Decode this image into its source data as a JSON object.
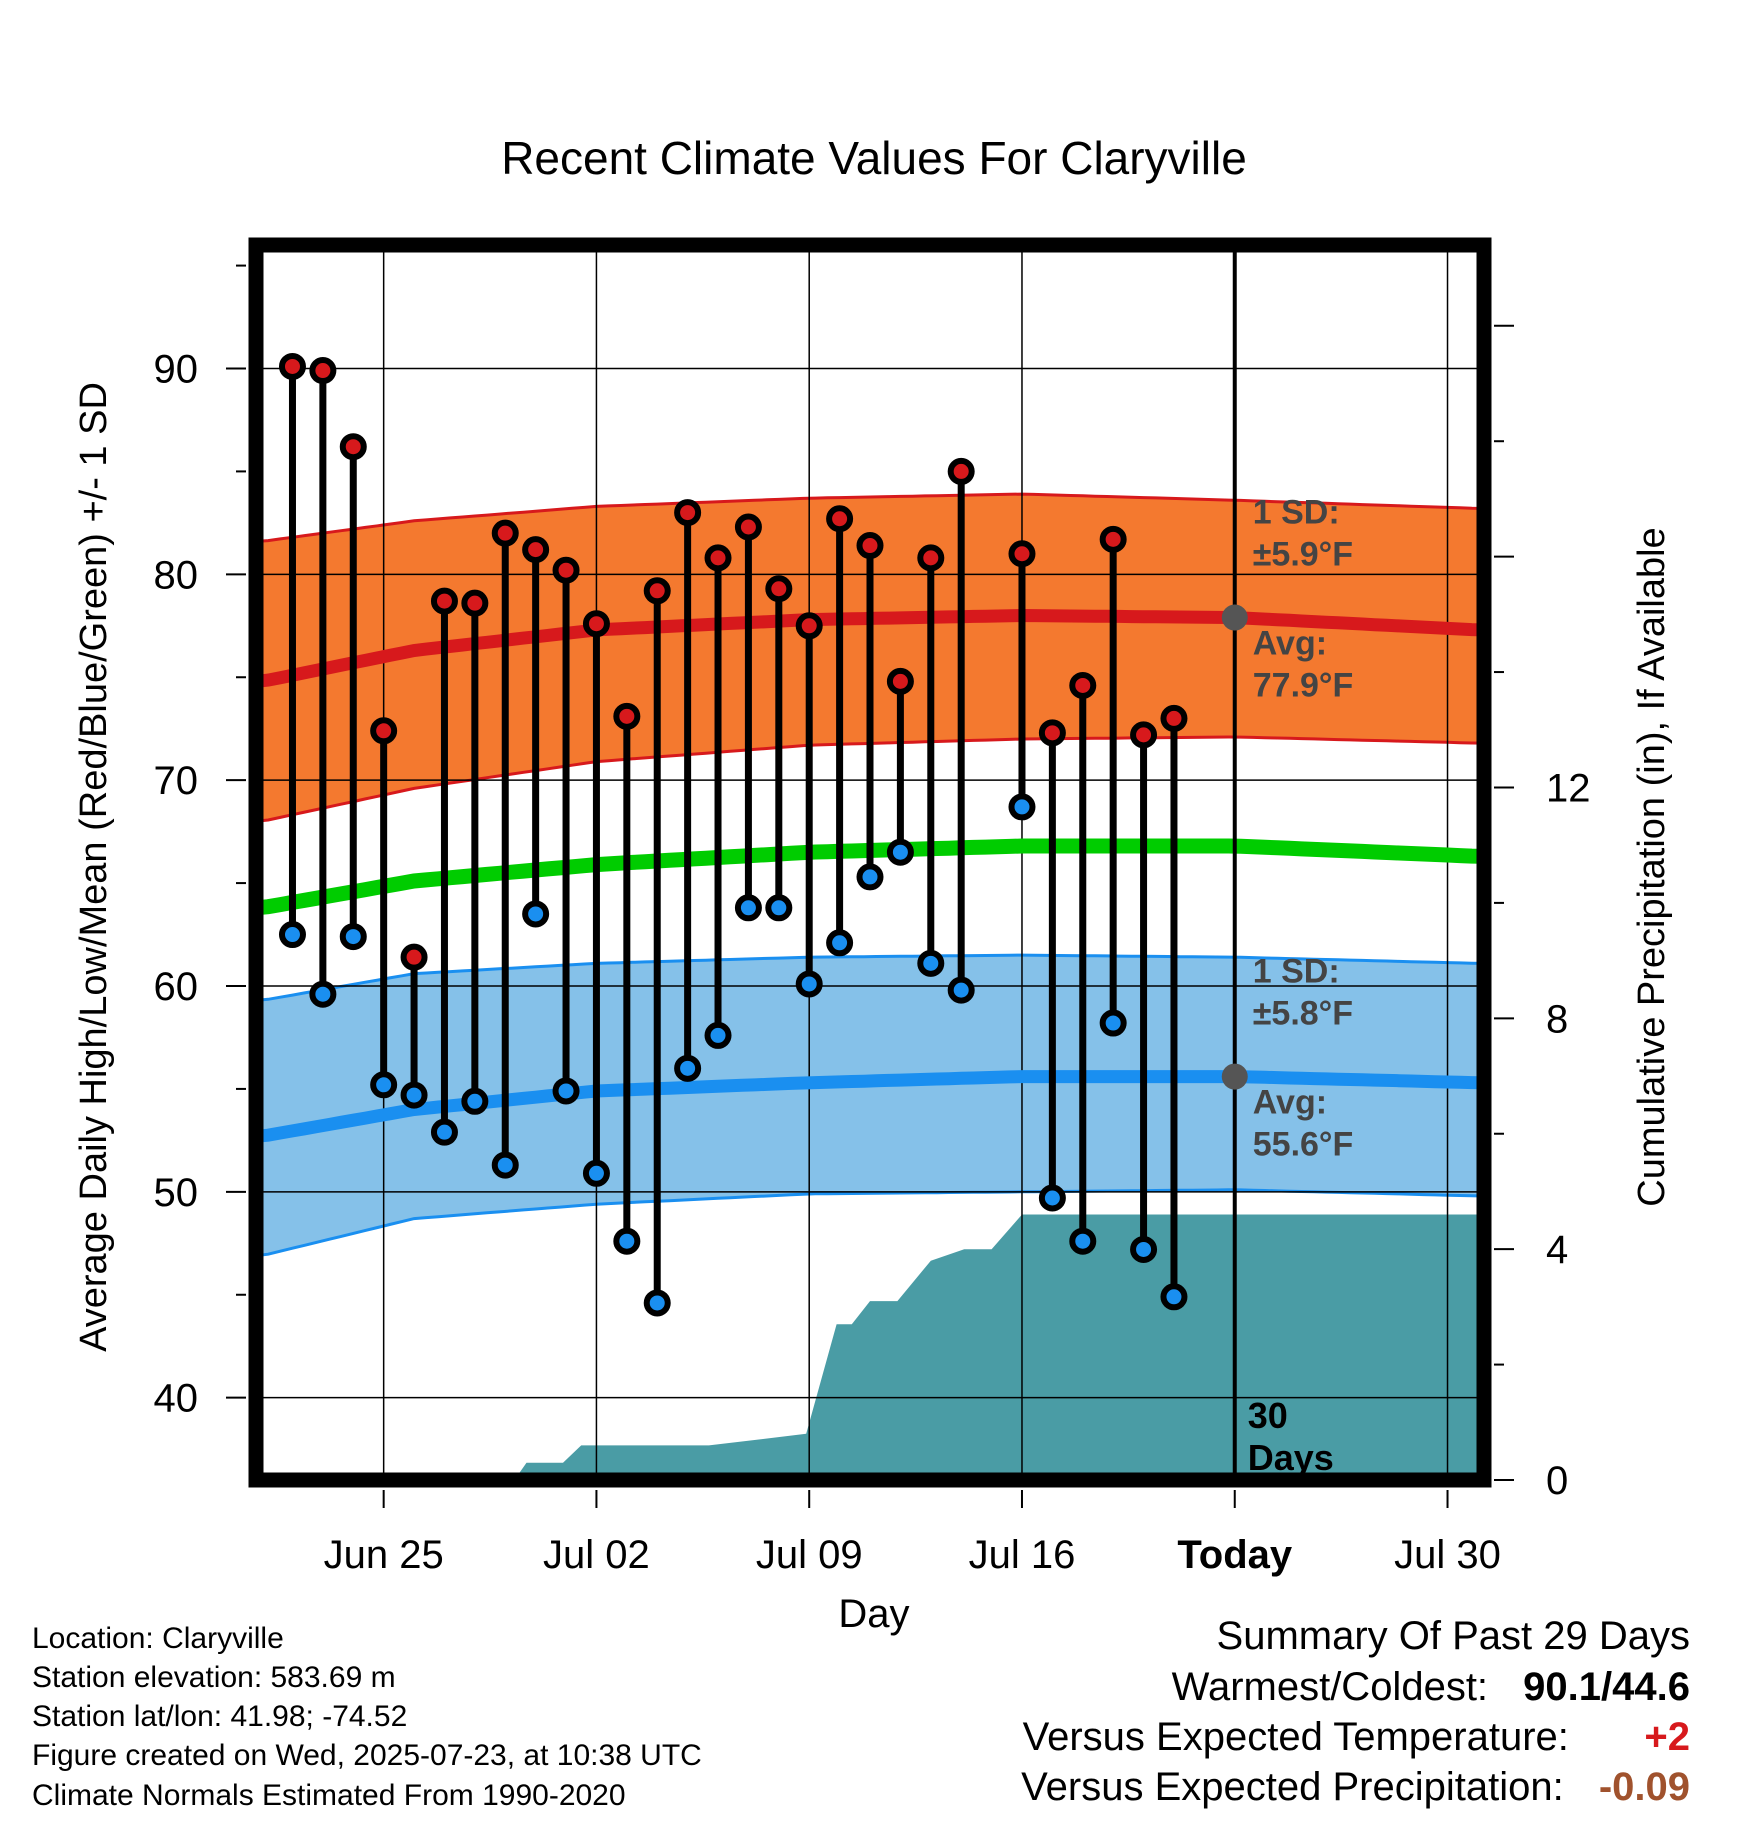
{
  "chart_data": {
    "type": "line",
    "title": "Recent Climate Values For Claryville",
    "xlabel": "Day",
    "ylabel_left": "Average Daily High/Low/Mean (Red/Blue/Green) +/- 1 SD",
    "ylabel_right": "Cumulative Precipitation (in), If Available",
    "ylim_left": [
      36,
      96
    ],
    "ylim_right": [
      0,
      21.4
    ],
    "xlim": [
      -3.2,
      37.2
    ],
    "x_ticks": [
      {
        "day": 1,
        "label": "Jun 25"
      },
      {
        "day": 8,
        "label": "Jul 02"
      },
      {
        "day": 15,
        "label": "Jul 09"
      },
      {
        "day": 22,
        "label": "Jul 16"
      },
      {
        "day": 29,
        "label": "Today"
      },
      {
        "day": 36,
        "label": "Jul 30"
      }
    ],
    "y_ticks_left": [
      40,
      50,
      60,
      70,
      80,
      90
    ],
    "y_ticks_right": [
      0,
      4,
      8,
      12
    ],
    "grid": true,
    "normals": {
      "day": [
        -3,
        2,
        8,
        15,
        22,
        29,
        37
      ],
      "high_avg": [
        74.8,
        76.3,
        77.3,
        77.8,
        78.0,
        77.9,
        77.3
      ],
      "high_sd_upper": [
        81.6,
        82.6,
        83.3,
        83.7,
        83.9,
        83.6,
        83.2
      ],
      "high_sd_lower": [
        68.0,
        69.6,
        70.9,
        71.7,
        72.0,
        72.1,
        71.8
      ],
      "mean_avg": [
        63.8,
        65.1,
        65.9,
        66.5,
        66.8,
        66.8,
        66.3
      ],
      "low_avg": [
        52.7,
        54.0,
        54.9,
        55.3,
        55.6,
        55.6,
        55.3
      ],
      "low_sd_upper": [
        59.3,
        60.6,
        61.1,
        61.4,
        61.5,
        61.4,
        61.1
      ],
      "low_sd_lower": [
        46.9,
        48.7,
        49.4,
        49.9,
        50.0,
        50.1,
        49.8
      ]
    },
    "daily": {
      "day": [
        -2,
        -1,
        0,
        1,
        2,
        3,
        4,
        5,
        6,
        7,
        8,
        9,
        10,
        11,
        12,
        13,
        14,
        15,
        16,
        17,
        18,
        19,
        20,
        22,
        23,
        24,
        25,
        26,
        27,
        28
      ],
      "high": [
        90.1,
        89.9,
        86.2,
        72.4,
        61.4,
        78.7,
        78.6,
        82.0,
        81.2,
        80.2,
        77.6,
        73.1,
        79.2,
        83.0,
        80.8,
        82.3,
        79.3,
        77.5,
        82.7,
        81.4,
        74.8,
        80.8,
        85.0,
        81.0,
        72.3,
        74.6,
        81.7,
        72.2,
        73.0,
        null
      ],
      "low": [
        62.5,
        59.6,
        62.4,
        55.2,
        54.7,
        52.9,
        54.4,
        51.3,
        63.5,
        54.9,
        50.9,
        47.6,
        44.6,
        56.0,
        57.6,
        63.8,
        63.8,
        60.1,
        62.1,
        65.3,
        66.5,
        61.1,
        59.8,
        68.7,
        49.7,
        47.6,
        58.2,
        47.2,
        44.9,
        null
      ]
    },
    "precip_cumulative": {
      "day": [
        -3.2,
        5.3,
        5.7,
        6.9,
        7.5,
        8.0,
        9.0,
        11.7,
        14.9,
        15.9,
        16.4,
        17.0,
        17.9,
        19.0,
        20.1,
        21.0,
        22.0,
        37.2
      ],
      "value": [
        0.0,
        0.0,
        0.3,
        0.3,
        0.6,
        0.6,
        0.6,
        0.6,
        0.8,
        2.7,
        2.7,
        3.1,
        3.1,
        3.8,
        4.0,
        4.0,
        4.6,
        4.6
      ]
    },
    "today_marker": {
      "day": 29,
      "high_avg": 77.9,
      "low_avg": 55.6
    },
    "annotations": {
      "high_sd_label": "1 SD:",
      "high_sd_value": "±5.9°F",
      "high_avg_label": "Avg:",
      "high_avg_value": "77.9°F",
      "low_sd_label": "1 SD:",
      "low_sd_value": "±5.8°F",
      "low_avg_label": "Avg:",
      "low_avg_value": "55.6°F",
      "days_number": "30",
      "days_label": "Days"
    },
    "colors": {
      "high": "#d7191c",
      "high_band": "#f4792f",
      "low": "#1a8ff0",
      "low_band": "#85c1e9",
      "mean": "#00cc00",
      "precip": "#4a9ca5",
      "annotation": "#444444"
    }
  },
  "footer": {
    "location": "Location: Claryville",
    "elevation": "Station elevation: 583.69 m",
    "latlon": "Station lat/lon: 41.98; -74.52",
    "created": "Figure created on Wed, 2025-07-23, at 10:38 UTC",
    "normals": "Climate Normals Estimated From 1990-2020"
  },
  "summary": {
    "title": "Summary Of Past 29 Days",
    "warmest_label": "Warmest/Coldest:",
    "warmest_value": "90.1/44.6",
    "temp_label": "Versus Expected Temperature:",
    "temp_value": "+2",
    "temp_color": "#d7191c",
    "precip_label": "Versus Expected Precipitation:",
    "precip_value": "-0.09",
    "precip_color": "#a0522d"
  }
}
